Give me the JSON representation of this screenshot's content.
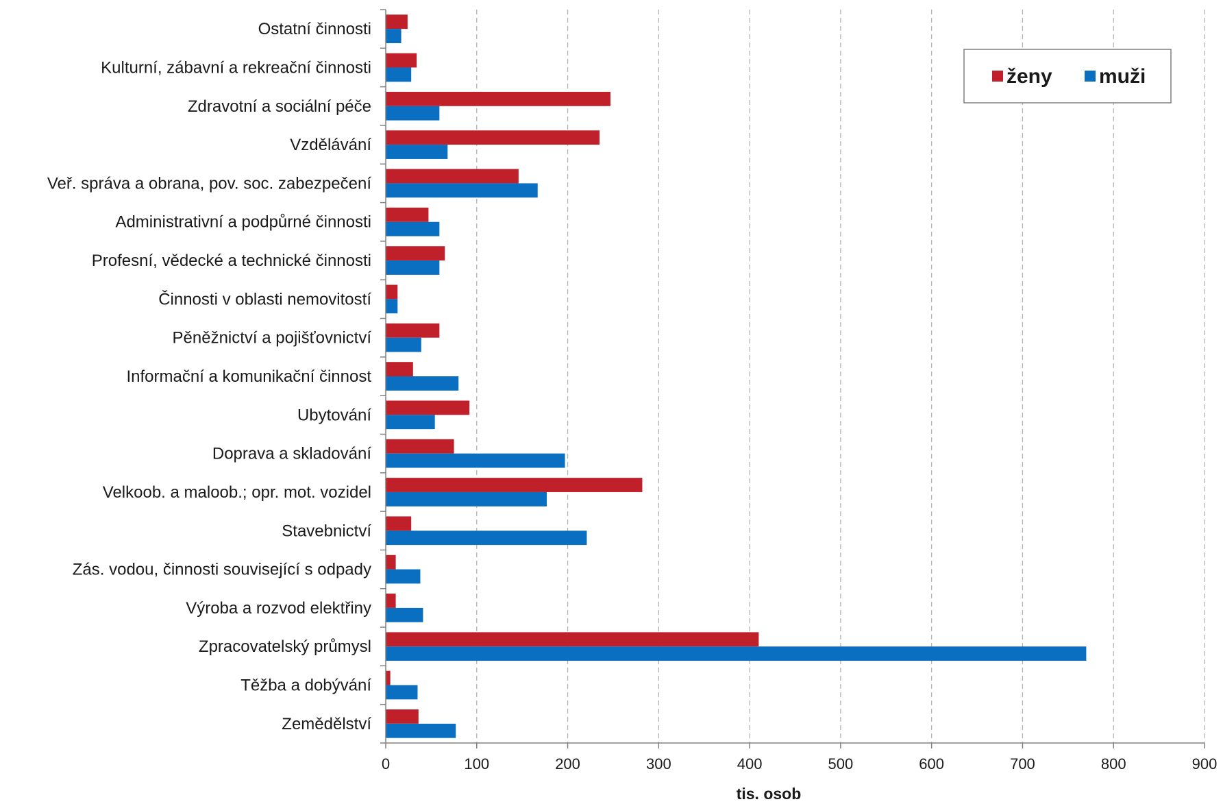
{
  "chart_data": {
    "type": "bar",
    "orientation": "horizontal",
    "categories": [
      "Ostatní činnosti",
      "Kulturní, zábavní a rekreační činnosti",
      "Zdravotní a sociální péče",
      "Vzdělávání",
      "Veř. správa a obrana, pov. soc. zabezpečení",
      "Administrativní a podpůrné činnosti",
      "Profesní, vědecké a technické činnosti",
      "Činnosti v oblasti nemovitostí",
      "Pěněžnictví a pojišťovnictví",
      "Informační a komunikační činnost",
      "Ubytování",
      "Doprava a skladování",
      "Velkoob. a maloob.; opr. mot. vozidel",
      "Stavebnictví",
      "Zás. vodou, činnosti související s odpady",
      "Výroba a rozvod elektřiny",
      "Zpracovatelský průmysl",
      "Těžba a dobývání",
      "Zemědělství"
    ],
    "series": [
      {
        "name": "ženy",
        "color": "#C0202A",
        "values": [
          24,
          34,
          247,
          235,
          146,
          47,
          65,
          13,
          59,
          30,
          92,
          75,
          282,
          28,
          11,
          11,
          410,
          5,
          36
        ]
      },
      {
        "name": "muži",
        "color": "#0B6FC1",
        "values": [
          17,
          28,
          59,
          68,
          167,
          59,
          59,
          13,
          39,
          80,
          54,
          197,
          177,
          221,
          38,
          41,
          770,
          35,
          77
        ]
      }
    ],
    "xlabel": "tis. osob",
    "xlim": [
      0,
      900
    ],
    "xticks": [
      0,
      100,
      200,
      300,
      400,
      500,
      600,
      700,
      800,
      900
    ],
    "grid": "vertical dashed",
    "legend_position": "top-right"
  }
}
